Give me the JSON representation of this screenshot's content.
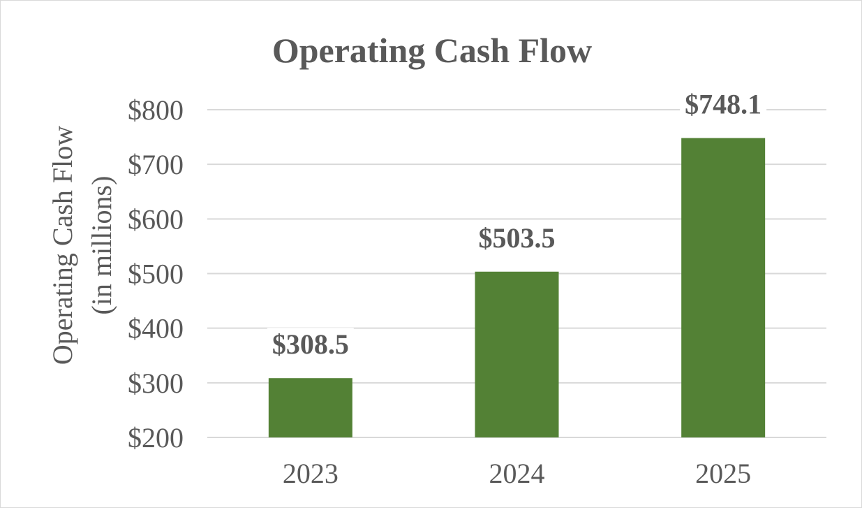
{
  "chart_data": {
    "type": "bar",
    "title": "Operating Cash Flow",
    "ylabel_lines": [
      "Operating Cash Flow",
      "(in millions)"
    ],
    "xlabel": "",
    "categories": [
      "2023",
      "2024",
      "2025"
    ],
    "values": [
      308.5,
      503.5,
      748.1
    ],
    "data_labels": [
      "$308.5",
      "$503.5",
      "$748.1"
    ],
    "y_ticks": [
      200,
      300,
      400,
      500,
      600,
      700,
      800
    ],
    "y_tick_labels": [
      "$200",
      "$300",
      "$400",
      "$500",
      "$600",
      "$700",
      "$800"
    ],
    "ylim": [
      200,
      800
    ],
    "grid": true,
    "legend": "none",
    "colors": {
      "bar": "#538135",
      "text": "#595959",
      "grid": "#d9d9d9",
      "border": "#d9d9d9"
    }
  }
}
